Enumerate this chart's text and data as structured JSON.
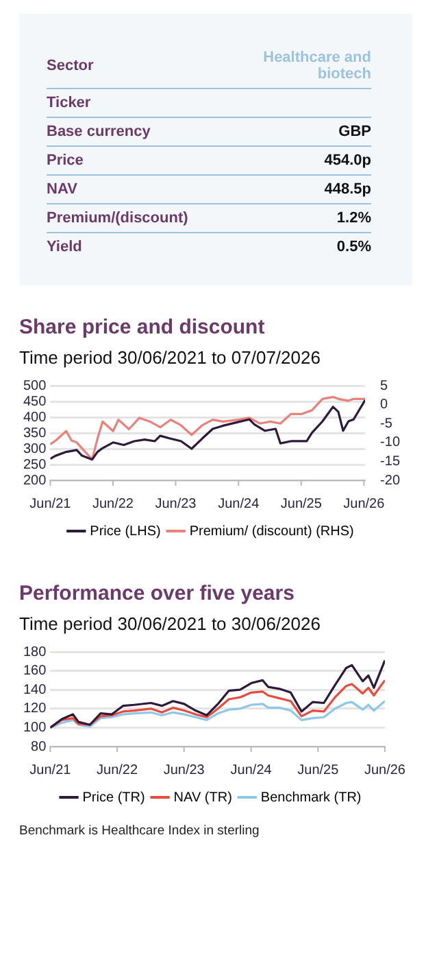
{
  "chart_data": [
    {
      "type": "other",
      "categories": [
        "Sector",
        "Ticker",
        "Base currency",
        "Price",
        "NAV",
        "Premium/(discount)",
        "Yield"
      ],
      "value_labels": [
        "Healthcare and biotech",
        null,
        "GBP",
        "454.0p",
        "448.5p",
        "1.2%",
        "0.5%"
      ]
    },
    {
      "type": "line",
      "title": "Share price and discount",
      "subtitle": "Time period 30/06/2021 to 07/07/2026",
      "grid": "y",
      "legend": "bottom",
      "marker": "none",
      "xlim": [
        "2021-06-30",
        "2026-07-07"
      ],
      "xticks": [
        {
          "value": "2021-06-30",
          "label": "Jun/21"
        },
        {
          "value": "2022-06-30",
          "label": "Jun/22"
        },
        {
          "value": "2023-06-30",
          "label": "Jun/23"
        },
        {
          "value": "2024-06-30",
          "label": "Jun/24"
        },
        {
          "value": "2025-06-30",
          "label": "Jun/25"
        },
        {
          "value": "2026-06-30",
          "label": "Jun/26"
        }
      ],
      "ylim": [
        200,
        500
      ],
      "yticks": [
        200,
        250,
        300,
        350,
        400,
        450,
        500
      ],
      "y2lim": [
        -20,
        5
      ],
      "y2ticks": [
        -20,
        -15,
        -10,
        -5,
        0,
        5
      ],
      "series": [
        {
          "name": "Price (LHS)",
          "color": "#2e1a3a",
          "x": [
            "2021-06-30",
            "2021-08",
            "2021-10",
            "2021-12",
            "2022-01",
            "2022-03",
            "2022-04",
            "2022-05",
            "2022-07",
            "2022-09",
            "2022-11",
            "2023-01",
            "2023-03",
            "2023-04",
            "2023-06",
            "2023-08",
            "2023-10",
            "2023-12",
            "2024-02",
            "2024-04",
            "2024-07",
            "2024-09",
            "2024-10",
            "2024-12",
            "2025-02",
            "2025-03",
            "2025-05",
            "2025-08",
            "2025-09",
            "2025-11",
            "2026-01",
            "2026-02",
            "2026-03",
            "2026-04",
            "2026-05",
            "2026-07-07"
          ],
          "values": [
            268,
            278,
            290,
            296,
            278,
            266,
            290,
            302,
            320,
            312,
            324,
            329,
            324,
            341,
            332,
            324,
            300,
            332,
            363,
            373,
            385,
            393,
            377,
            357,
            363,
            317,
            324,
            324,
            351,
            387,
            433,
            417,
            357,
            387,
            393,
            454
          ]
        },
        {
          "name": "Premium/ (discount) (RHS)",
          "color": "#e8827a",
          "axis": "y2",
          "x": [
            "2021-06-30",
            "2021-08",
            "2021-10",
            "2021-11",
            "2021-12",
            "2022-03",
            "2022-04",
            "2022-05",
            "2022-07",
            "2022-08",
            "2022-10",
            "2022-12",
            "2023-02",
            "2023-04",
            "2023-06",
            "2023-08",
            "2023-10",
            "2023-12",
            "2024-02",
            "2024-04",
            "2024-07",
            "2024-09",
            "2024-11",
            "2025-01",
            "2025-03",
            "2025-05",
            "2025-07",
            "2025-09",
            "2025-11",
            "2026-01",
            "2026-02",
            "2026-04",
            "2026-05",
            "2026-07-07"
          ],
          "values": [
            -10.5,
            -9.5,
            -7,
            -9.5,
            -10,
            -14.5,
            -9,
            -4.5,
            -7,
            -4,
            -6.5,
            -3.5,
            -4.5,
            -6,
            -4,
            -5.5,
            -8,
            -5.5,
            -4,
            -4.5,
            -4,
            -3.5,
            -5,
            -4.5,
            -5,
            -2.5,
            -2.5,
            -1.5,
            1.5,
            2,
            1.5,
            1,
            1.5,
            1.5
          ]
        }
      ]
    },
    {
      "type": "line",
      "title": "Performance over five years",
      "subtitle": "Time period 30/06/2021 to 30/06/2026",
      "grid": "y",
      "legend": "bottom",
      "marker": "none",
      "xlim": [
        "2021-06-30",
        "2026-06-30"
      ],
      "xticks": [
        {
          "value": "2021-06-30",
          "label": "Jun/21"
        },
        {
          "value": "2022-06-30",
          "label": "Jun/22"
        },
        {
          "value": "2023-06-30",
          "label": "Jun/23"
        },
        {
          "value": "2024-06-30",
          "label": "Jun/24"
        },
        {
          "value": "2025-06-30",
          "label": "Jun/25"
        },
        {
          "value": "2026-06-30",
          "label": "Jun/26"
        }
      ],
      "ylim": [
        80,
        180
      ],
      "yticks": [
        80,
        100,
        120,
        140,
        160,
        180
      ],
      "x": [
        "2021-06-30",
        "2021-09",
        "2021-11",
        "2021-12",
        "2022-02",
        "2022-04",
        "2022-06",
        "2022-08",
        "2022-10",
        "2023-01",
        "2023-03",
        "2023-05",
        "2023-07",
        "2023-09",
        "2023-11",
        "2024-01",
        "2024-03",
        "2024-05",
        "2024-07",
        "2024-09",
        "2024-10",
        "2024-12",
        "2025-02",
        "2025-04",
        "2025-06",
        "2025-08",
        "2025-10",
        "2025-12",
        "2026-01",
        "2026-03",
        "2026-04",
        "2026-05",
        "2026-06-30"
      ],
      "series": [
        {
          "name": "Price (TR)",
          "color": "#2e1a3a",
          "values": [
            100,
            109,
            114,
            106,
            103,
            115,
            114,
            123,
            124,
            126,
            123,
            128,
            125,
            118,
            113,
            125,
            139,
            140,
            147,
            150,
            143,
            141,
            137,
            117,
            127,
            126,
            145,
            163,
            166,
            149,
            155,
            142,
            171
          ]
        },
        {
          "name": "NAV (TR)",
          "color": "#e84c3d",
          "values": [
            100,
            108,
            110,
            104,
            103,
            112,
            113,
            117,
            118,
            120,
            116,
            121,
            118,
            114,
            111,
            120,
            130,
            132,
            137,
            138,
            134,
            131,
            128,
            112,
            118,
            117,
            132,
            144,
            146,
            136,
            142,
            134,
            150
          ]
        },
        {
          "name": "Benchmark (TR)",
          "color": "#8ec8e8",
          "values": [
            100,
            105,
            108,
            103,
            101,
            110,
            111,
            114,
            115,
            116,
            113,
            116,
            114,
            111,
            108,
            115,
            119,
            120,
            124,
            125,
            121,
            121,
            118,
            108,
            110,
            111,
            120,
            126,
            127,
            119,
            124,
            118,
            128
          ]
        }
      ],
      "annotations": [
        "Benchmark is Healthcare Index in sterling"
      ]
    }
  ]
}
